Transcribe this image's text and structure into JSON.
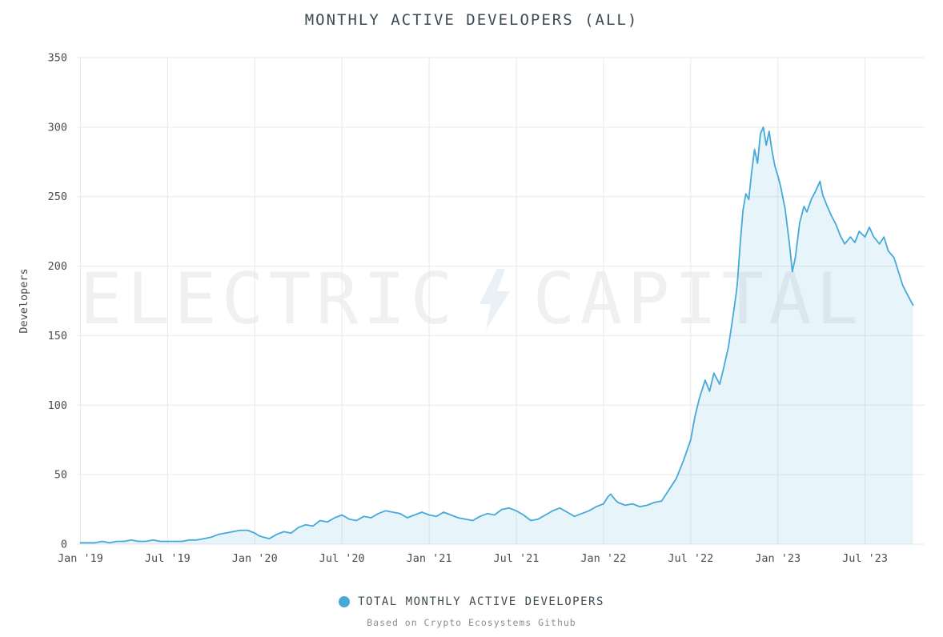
{
  "title": "MONTHLY ACTIVE DEVELOPERS (ALL)",
  "watermark": {
    "left": "ELECTRIC",
    "right": "CAPITAL",
    "bolt_icon": "lightning-bolt",
    "text_color": "#f0f0f3",
    "bolt_color": "#e9f1f7"
  },
  "legend": {
    "label": "TOTAL MONTHLY ACTIVE DEVELOPERS",
    "dot_color": "#45a9da"
  },
  "footnote": "Based on Crypto Ecosystems Github",
  "chart_data": {
    "type": "area",
    "title": "MONTHLY ACTIVE DEVELOPERS (ALL)",
    "xlabel": "",
    "ylabel": "Developers",
    "ylim": [
      0,
      350
    ],
    "xlim_months": [
      -0.3,
      58.1
    ],
    "y_ticks": [
      0,
      50,
      100,
      150,
      200,
      250,
      300,
      350
    ],
    "x_ticks": [
      {
        "m": 0,
        "label": "Jan '19"
      },
      {
        "m": 6,
        "label": "Jul '19"
      },
      {
        "m": 12,
        "label": "Jan '20"
      },
      {
        "m": 18,
        "label": "Jul '20"
      },
      {
        "m": 24,
        "label": "Jan '21"
      },
      {
        "m": 30,
        "label": "Jul '21"
      },
      {
        "m": 36,
        "label": "Jan '22"
      },
      {
        "m": 42,
        "label": "Jul '22"
      },
      {
        "m": 48,
        "label": "Jan '23"
      },
      {
        "m": 54,
        "label": "Jul '23"
      }
    ],
    "grid": true,
    "grid_color": "#e9e9ec",
    "tick_color": "#4d4d4d",
    "line_color": "#45a9da",
    "fill_color": "rgba(69,169,218,0.13)",
    "legend_position": "bottom",
    "x_unit": "months since Jan 2019",
    "series": [
      {
        "name": "TOTAL MONTHLY ACTIVE DEVELOPERS",
        "points": [
          [
            0,
            1
          ],
          [
            0.5,
            1
          ],
          [
            1,
            1
          ],
          [
            1.5,
            2
          ],
          [
            2,
            1
          ],
          [
            2.5,
            2
          ],
          [
            3,
            2
          ],
          [
            3.5,
            3
          ],
          [
            4,
            2
          ],
          [
            4.5,
            2
          ],
          [
            5,
            3
          ],
          [
            5.5,
            2
          ],
          [
            6,
            2
          ],
          [
            6.5,
            2
          ],
          [
            7,
            2
          ],
          [
            7.5,
            3
          ],
          [
            8,
            3
          ],
          [
            8.5,
            4
          ],
          [
            9,
            5
          ],
          [
            9.5,
            7
          ],
          [
            10,
            8
          ],
          [
            10.5,
            9
          ],
          [
            11,
            10
          ],
          [
            11.5,
            10
          ],
          [
            12,
            8
          ],
          [
            12.3,
            6
          ],
          [
            12.6,
            5
          ],
          [
            13,
            4
          ],
          [
            13.5,
            7
          ],
          [
            14,
            9
          ],
          [
            14.5,
            8
          ],
          [
            15,
            12
          ],
          [
            15.5,
            14
          ],
          [
            16,
            13
          ],
          [
            16.5,
            17
          ],
          [
            17,
            16
          ],
          [
            17.5,
            19
          ],
          [
            18,
            21
          ],
          [
            18.5,
            18
          ],
          [
            19,
            17
          ],
          [
            19.5,
            20
          ],
          [
            20,
            19
          ],
          [
            20.5,
            22
          ],
          [
            21,
            24
          ],
          [
            21.5,
            23
          ],
          [
            22,
            22
          ],
          [
            22.5,
            19
          ],
          [
            23,
            21
          ],
          [
            23.5,
            23
          ],
          [
            24,
            21
          ],
          [
            24.5,
            20
          ],
          [
            25,
            23
          ],
          [
            25.5,
            21
          ],
          [
            26,
            19
          ],
          [
            26.5,
            18
          ],
          [
            27,
            17
          ],
          [
            27.5,
            20
          ],
          [
            28,
            22
          ],
          [
            28.5,
            21
          ],
          [
            29,
            25
          ],
          [
            29.5,
            26
          ],
          [
            30,
            24
          ],
          [
            30.5,
            21
          ],
          [
            31,
            17
          ],
          [
            31.5,
            18
          ],
          [
            32,
            21
          ],
          [
            32.5,
            24
          ],
          [
            33,
            26
          ],
          [
            33.5,
            23
          ],
          [
            34,
            20
          ],
          [
            34.5,
            22
          ],
          [
            35,
            24
          ],
          [
            35.5,
            27
          ],
          [
            36,
            29
          ],
          [
            36.3,
            34
          ],
          [
            36.5,
            36
          ],
          [
            36.8,
            32
          ],
          [
            37,
            30
          ],
          [
            37.5,
            28
          ],
          [
            38,
            29
          ],
          [
            38.5,
            27
          ],
          [
            39,
            28
          ],
          [
            39.5,
            30
          ],
          [
            40,
            31
          ],
          [
            40.5,
            39
          ],
          [
            41,
            47
          ],
          [
            41.5,
            60
          ],
          [
            42,
            75
          ],
          [
            42.3,
            92
          ],
          [
            42.6,
            105
          ],
          [
            43,
            118
          ],
          [
            43.3,
            110
          ],
          [
            43.6,
            123
          ],
          [
            44,
            115
          ],
          [
            44.3,
            128
          ],
          [
            44.6,
            142
          ],
          [
            45,
            170
          ],
          [
            45.2,
            186
          ],
          [
            45.4,
            215
          ],
          [
            45.6,
            240
          ],
          [
            45.8,
            252
          ],
          [
            46,
            248
          ],
          [
            46.2,
            268
          ],
          [
            46.4,
            284
          ],
          [
            46.6,
            274
          ],
          [
            46.8,
            295
          ],
          [
            47,
            300
          ],
          [
            47.2,
            287
          ],
          [
            47.4,
            297
          ],
          [
            47.6,
            283
          ],
          [
            47.8,
            272
          ],
          [
            48,
            265
          ],
          [
            48.2,
            257
          ],
          [
            48.5,
            241
          ],
          [
            48.8,
            216
          ],
          [
            49,
            196
          ],
          [
            49.2,
            206
          ],
          [
            49.5,
            231
          ],
          [
            49.8,
            243
          ],
          [
            50,
            239
          ],
          [
            50.3,
            248
          ],
          [
            50.6,
            254
          ],
          [
            50.9,
            261
          ],
          [
            51.1,
            251
          ],
          [
            51.4,
            243
          ],
          [
            51.7,
            236
          ],
          [
            52,
            230
          ],
          [
            52.3,
            222
          ],
          [
            52.6,
            216
          ],
          [
            53,
            221
          ],
          [
            53.3,
            217
          ],
          [
            53.6,
            225
          ],
          [
            54,
            221
          ],
          [
            54.3,
            228
          ],
          [
            54.6,
            221
          ],
          [
            55,
            216
          ],
          [
            55.3,
            221
          ],
          [
            55.6,
            211
          ],
          [
            56,
            206
          ],
          [
            56.3,
            196
          ],
          [
            56.6,
            186
          ],
          [
            57,
            178
          ],
          [
            57.3,
            172
          ]
        ]
      }
    ]
  }
}
